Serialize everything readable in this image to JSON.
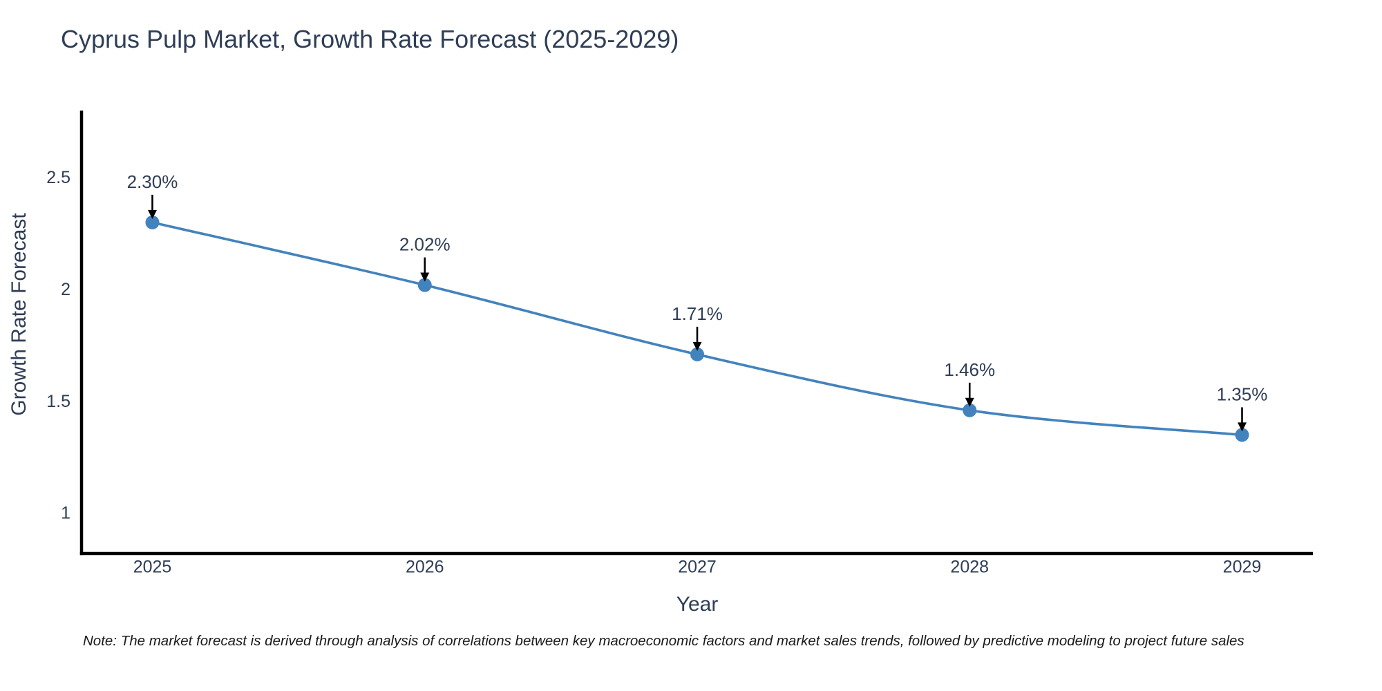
{
  "note": "Note: The market forecast is derived through analysis of correlations between key macroeconomic factors and market sales trends, followed by predictive modeling to project future sales",
  "chart_data": {
    "type": "line",
    "title": "Cyprus Pulp Market, Growth Rate Forecast (2025-2029)",
    "xlabel": "Year",
    "ylabel": "Growth Rate Forecast",
    "x": [
      2025,
      2026,
      2027,
      2028,
      2029
    ],
    "series": [
      {
        "name": "Growth Rate Forecast",
        "values": [
          2.3,
          2.02,
          1.71,
          1.46,
          1.35
        ]
      }
    ],
    "point_labels": [
      "2.30%",
      "2.02%",
      "1.71%",
      "1.46%",
      "1.35%"
    ],
    "xticks": [
      "2025",
      "2026",
      "2027",
      "2028",
      "2029"
    ],
    "xtick_values": [
      2025,
      2026,
      2027,
      2028,
      2029
    ],
    "yticks": [
      "1",
      "1.5",
      "2",
      "2.5"
    ],
    "ytick_values": [
      1,
      1.5,
      2,
      2.5
    ],
    "xlim": [
      2024.74,
      2029.26
    ],
    "ylim": [
      0.82,
      2.8
    ],
    "grid": false,
    "legend": "none",
    "line_shape": "spline",
    "colors": {
      "line": "#4383bd",
      "marker": "#4383bd",
      "axis": "#000000",
      "annotation_arrow": "#000000",
      "text": "#2f3e56"
    }
  }
}
